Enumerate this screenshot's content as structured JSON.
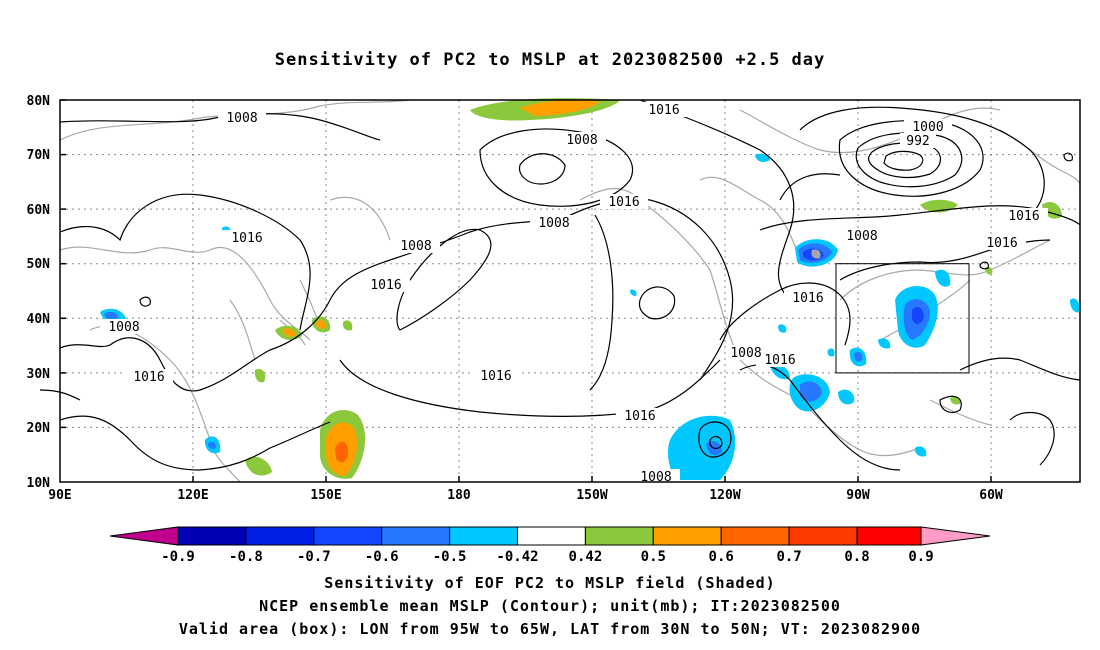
{
  "title": "Sensitivity of PC2 to MSLP at 2023082500 +2.5 day",
  "lat_labels": [
    "80N",
    "70N",
    "60N",
    "50N",
    "40N",
    "30N",
    "20N",
    "10N"
  ],
  "lon_labels": [
    "90E",
    "120E",
    "150E",
    "180",
    "150W",
    "120W",
    "90W",
    "60W"
  ],
  "contour_labels": [
    "1008",
    "1016",
    "1008",
    "1016",
    "1000",
    "992",
    "1016",
    "1008",
    "1016",
    "1008",
    "1016",
    "1016",
    "1008",
    "1016",
    "1016",
    "1008",
    "1016",
    "1016",
    "1008",
    "1016",
    "1008"
  ],
  "colorbar": {
    "labels": [
      "-0.9",
      "-0.8",
      "-0.7",
      "-0.6",
      "-0.5",
      "-0.42",
      "0.42",
      "0.5",
      "0.6",
      "0.7",
      "0.8",
      "0.9"
    ],
    "colors": [
      "#c0008c",
      "#0000b4",
      "#0020e6",
      "#1446ff",
      "#2878ff",
      "#00c8ff",
      "#ffffff",
      "#8cc83c",
      "#ffa000",
      "#ff6400",
      "#ff3c00",
      "#ff0000",
      "#ff9cc8"
    ]
  },
  "valid_box": {
    "lon_from": "95W",
    "lon_to": "65W",
    "lat_from": "30N",
    "lat_to": "50N"
  },
  "footer": {
    "line1": "Sensitivity of EOF PC2 to MSLP field (Shaded)",
    "line2": "NCEP ensemble mean MSLP (Contour); unit(mb); IT:2023082500",
    "line3": "Valid area (box): LON from 95W to 65W, LAT from 30N to 50N; VT: 2023082900"
  }
}
